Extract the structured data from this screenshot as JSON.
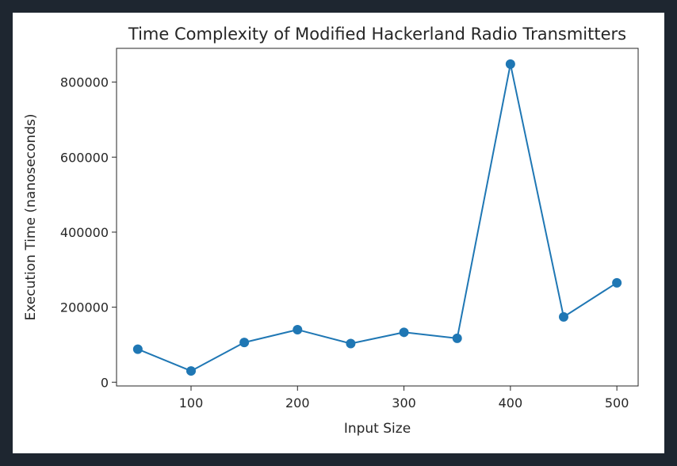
{
  "colors": {
    "background": "#1e2630",
    "figure": "#ffffff",
    "series": "#1f77b4",
    "axes": "#262626"
  },
  "chart_data": {
    "type": "line",
    "title": "Time Complexity of Modified Hackerland Radio Transmitters",
    "xlabel": "Input Size",
    "ylabel": "Execution Time (nanoseconds)",
    "xlim": [
      30,
      520
    ],
    "ylim": [
      -10000,
      890000
    ],
    "xticks": [
      100,
      200,
      300,
      400,
      500
    ],
    "yticks": [
      0,
      200000,
      400000,
      600000,
      800000
    ],
    "xtick_labels": [
      "100",
      "200",
      "300",
      "400",
      "500"
    ],
    "ytick_labels": [
      "0",
      "200000",
      "400000",
      "600000",
      "800000"
    ],
    "grid": false,
    "marker": "circle",
    "series": [
      {
        "x": [
          50,
          100,
          150,
          200,
          250,
          300,
          350,
          400,
          450,
          500
        ],
        "y": [
          88000,
          30000,
          106000,
          140000,
          103000,
          133000,
          117000,
          848000,
          174000,
          265000
        ]
      }
    ]
  }
}
